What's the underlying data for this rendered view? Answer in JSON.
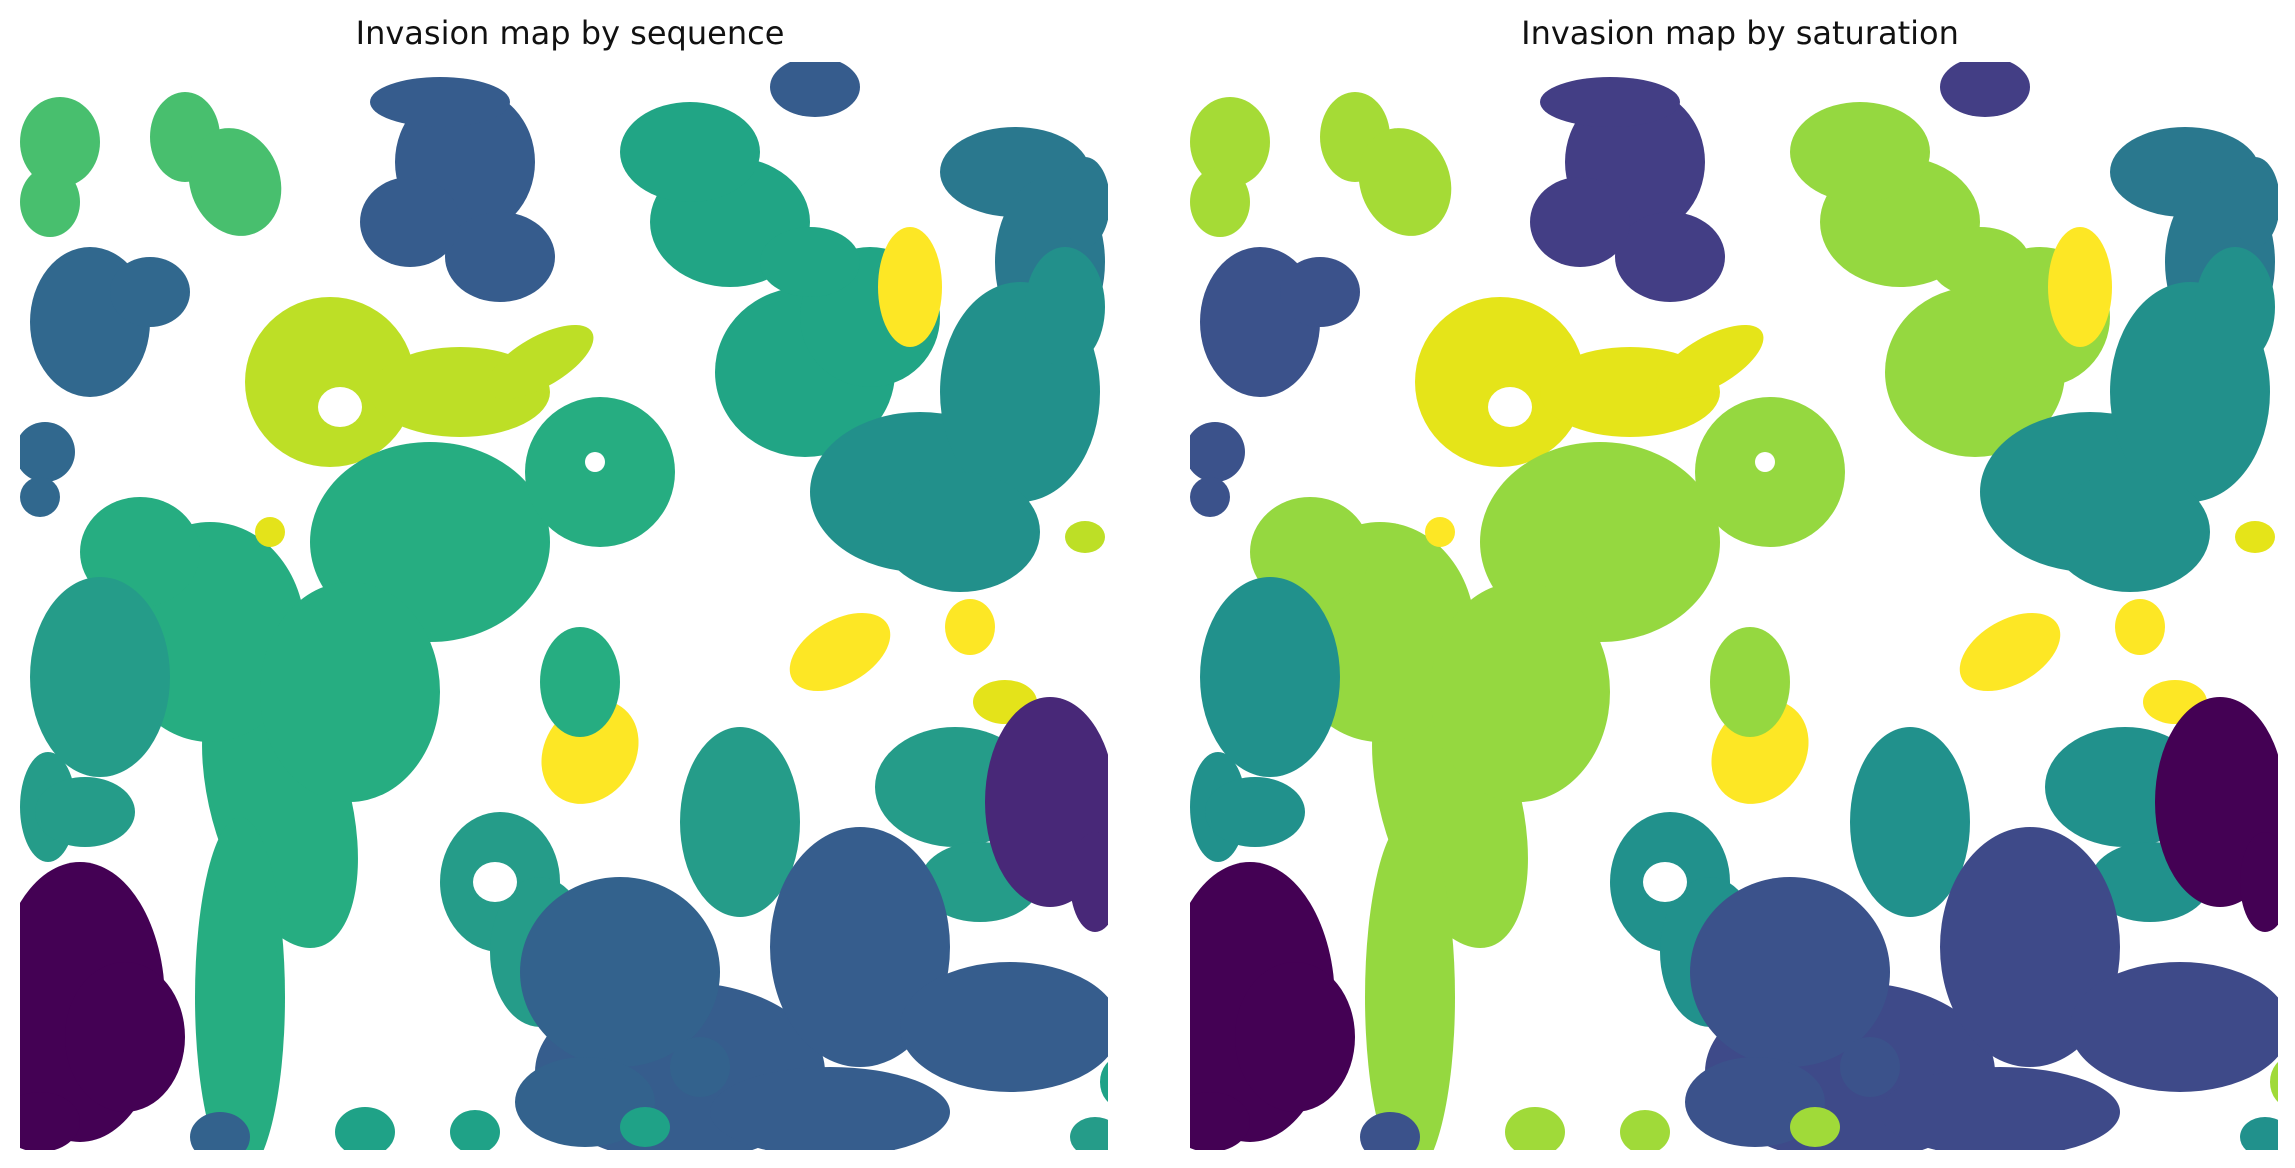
{
  "figure": {
    "colormap": "viridis",
    "background": "#ffffff"
  },
  "chart_data": [
    {
      "type": "heatmap",
      "title": "Invasion map by sequence",
      "axis": "off",
      "grid": false,
      "legend": "none",
      "cluster_colors": {
        "c_teal_top": "#2a788e",
        "c_green_top": "#48bf6e",
        "c_blue_top": "#365c8d",
        "c_green_mid": "#21a585",
        "c_yellow_right": "#fde725",
        "c_teal_right": "#22908b",
        "c_blue_left": "#31688e",
        "c_lime": "#bddf26",
        "c_green_center": "#26ad81",
        "c_yellow_small": "#e4e31a",
        "c_teal_left": "#259c89",
        "c_darkblue_right": "#482878",
        "c_darkpurple_left": "#440154",
        "c_blue_bottom": "#365d8d",
        "c_blue_center_bottom": "#33628d",
        "c_green_small": "#1fa287"
      }
    },
    {
      "type": "heatmap",
      "title": "Invasion map by saturation",
      "axis": "off",
      "grid": false,
      "legend": "none",
      "cluster_colors": {
        "c_teal_top": "#2a788e",
        "c_green_top": "#a5db36",
        "c_blue_top": "#433e85",
        "c_green_mid": "#95d840",
        "c_yellow_right": "#fde725",
        "c_teal_right": "#22908b",
        "c_blue_left": "#3b528b",
        "c_lime": "#e5e419",
        "c_green_center": "#95d840",
        "c_yellow_small": "#fde725",
        "c_teal_left": "#21918c",
        "c_darkblue_right": "#440154",
        "c_darkpurple_left": "#440154",
        "c_blue_bottom": "#3e4a89",
        "c_blue_center_bottom": "#3b528b",
        "c_green_small": "#a0da39"
      }
    }
  ]
}
